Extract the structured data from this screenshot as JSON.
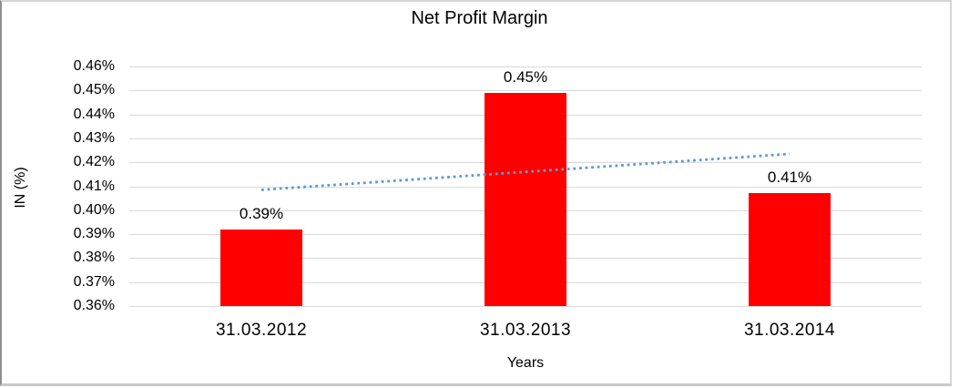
{
  "chart_data": {
    "type": "bar",
    "title": "Net Profit Margin",
    "xlabel": "Years",
    "ylabel": "IN (%)",
    "categories": [
      "31.03.2012",
      "31.03.2013",
      "31.03.2014"
    ],
    "values": [
      0.392,
      0.449,
      0.407
    ],
    "data_labels": [
      "0.39%",
      "0.45%",
      "0.41%"
    ],
    "ylim": [
      0.36,
      0.46
    ],
    "ytick_labels": [
      "0.46%",
      "0.45%",
      "0.44%",
      "0.43%",
      "0.42%",
      "0.41%",
      "0.40%",
      "0.39%",
      "0.38%",
      "0.37%",
      "0.36%"
    ],
    "grid": true,
    "legend": "none",
    "bar_color": "#ff0000",
    "gridline_color": "#d9d9d9",
    "trendline": {
      "style": "dotted",
      "color": "#5b9bd5",
      "start_value": 0.4085,
      "end_value": 0.4235
    }
  }
}
